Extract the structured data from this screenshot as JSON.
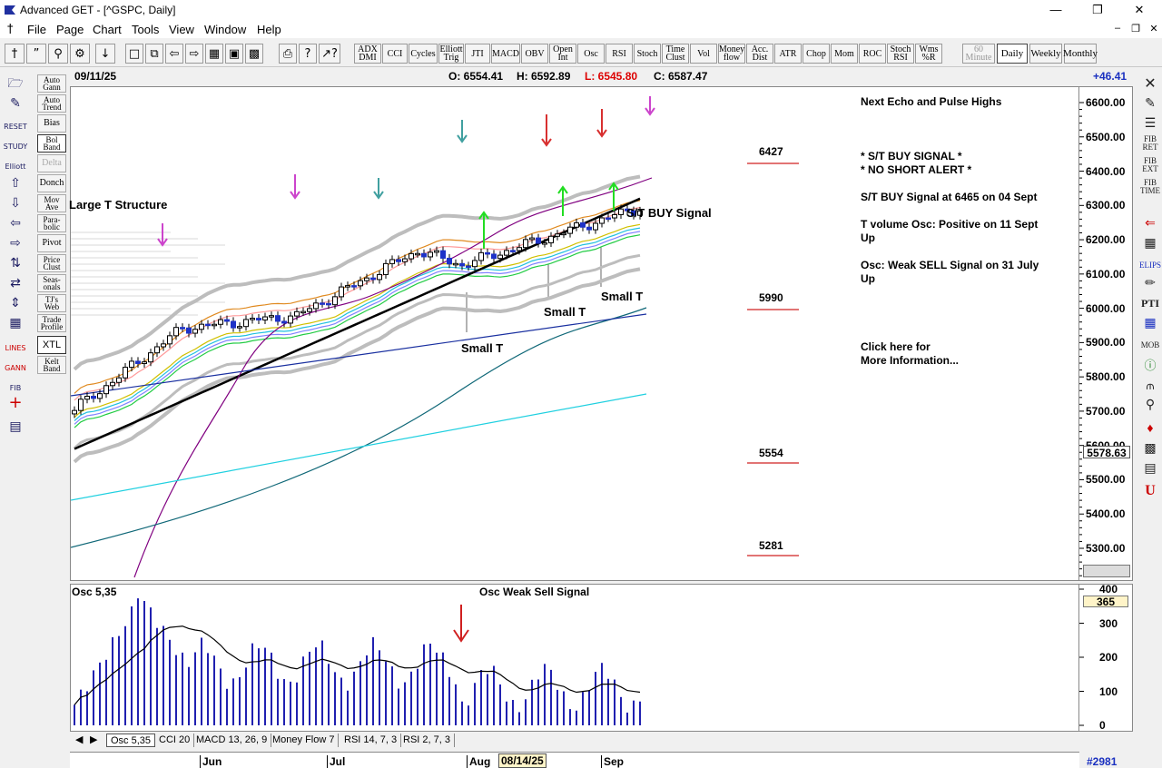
{
  "window": {
    "title": "Advanced GET - [^GSPC, Daily]"
  },
  "menu": [
    "File",
    "Page",
    "Chart",
    "Tools",
    "View",
    "Window",
    "Help"
  ],
  "toolbar": {
    "studies": [
      {
        "label": "ADX DMI"
      },
      {
        "label": "CCI"
      },
      {
        "label": "Cycles"
      },
      {
        "label": "Elliott Trig"
      },
      {
        "label": "JTI"
      },
      {
        "label": "MACD"
      },
      {
        "label": "OBV"
      },
      {
        "label": "Open Int"
      },
      {
        "label": "Osc"
      },
      {
        "label": "RSI"
      },
      {
        "label": "Stoch"
      },
      {
        "label": "Time Clust"
      },
      {
        "label": "Vol"
      },
      {
        "label": "Money flow"
      },
      {
        "label": "Acc. Dist"
      },
      {
        "label": "ATR"
      },
      {
        "label": "Chop"
      },
      {
        "label": "Mom"
      },
      {
        "label": "ROC"
      },
      {
        "label": "Stoch RSI"
      },
      {
        "label": "Wms %R"
      }
    ],
    "timeframes": [
      {
        "label": "60 Minute"
      },
      {
        "label": "Daily"
      },
      {
        "label": "Weekly"
      },
      {
        "label": "Monthly"
      }
    ]
  },
  "left_tools": [
    {
      "label": "Auto Gann"
    },
    {
      "label": "Auto Trend"
    },
    {
      "label": "Bias"
    },
    {
      "label": "Bol Band"
    },
    {
      "label": "Delta"
    },
    {
      "label": "Donch"
    },
    {
      "label": "Mov Ave"
    },
    {
      "label": "Para- bolic"
    },
    {
      "label": "Pivot"
    },
    {
      "label": "Price Clust"
    },
    {
      "label": "Seas- onals"
    },
    {
      "label": "TJ's Web"
    },
    {
      "label": "Trade Profile"
    },
    {
      "label": "XTL"
    },
    {
      "label": "Kelt Band"
    }
  ],
  "left_icons": [
    "RESET",
    "STUDY",
    "Elliott",
    "LINES",
    "GANN",
    "FIB"
  ],
  "right_tools": [
    "FIB RET",
    "FIB EXT",
    "FIB TIME",
    "ELIPS",
    "PTI",
    "MOB"
  ],
  "infobar": {
    "date": "09/11/25",
    "open": "O: 6554.41",
    "high": "H: 6592.89",
    "low": "L: 6545.80",
    "close": "C: 6587.47",
    "change": "+46.41"
  },
  "annotations": {
    "large_t": "Large T Structure",
    "st_buy": "S/T BUY Signal",
    "small_t_1": "Small T",
    "small_t_2": "Small T",
    "small_t_3": "Small T",
    "osc_weak_sell": "Osc Weak Sell Signal"
  },
  "levels": [
    {
      "value": "6427"
    },
    {
      "value": "5990"
    },
    {
      "value": "5554"
    },
    {
      "value": "5281"
    }
  ],
  "notes": {
    "echo": "Next Echo and Pulse Highs",
    "buy_signal": "* S/T BUY SIGNAL *",
    "no_short": "* NO SHORT ALERT *",
    "buy_at": "S/T BUY Signal at 6465 on 04 Sept",
    "tvol": "T volume Osc: Positive on 11 Sept",
    "tvol_up": "Up",
    "osc_sell": "Osc: Weak SELL Signal on 31 July",
    "osc_up": "Up",
    "click1": "Click here for",
    "click2": "More Information..."
  },
  "price_axis": {
    "ticks": [
      "6600.00",
      "6500.00",
      "6400.00",
      "6300.00",
      "6200.00",
      "6100.00",
      "6000.00",
      "5900.00",
      "5800.00",
      "5700.00",
      "5600.00",
      "5500.00",
      "5400.00",
      "5300.00"
    ],
    "marker": "5578.63"
  },
  "osc": {
    "title": "Osc 5,35",
    "ticks": [
      "400",
      "300",
      "200",
      "100",
      "0"
    ],
    "value": "365"
  },
  "tabs": [
    "Osc 5,35",
    "CCI 20",
    "MACD 13, 26, 9",
    "Money Flow 7",
    "RSI 14, 7, 3",
    "RSI 2, 7, 3"
  ],
  "dates": {
    "jun": "Jun",
    "jul": "Jul",
    "aug": "Aug",
    "cursor": "08/14/25",
    "sep": "Sep",
    "bar": "#2981"
  },
  "colors": {
    "up_candle": "#1e32c8",
    "bollinger": "#bdbdbd",
    "ma_black": "#000000",
    "green_arrow": "#22dd22",
    "magenta_arrow": "#cc44cc",
    "red_arrow": "#d83030",
    "level_line": "#d02020"
  }
}
